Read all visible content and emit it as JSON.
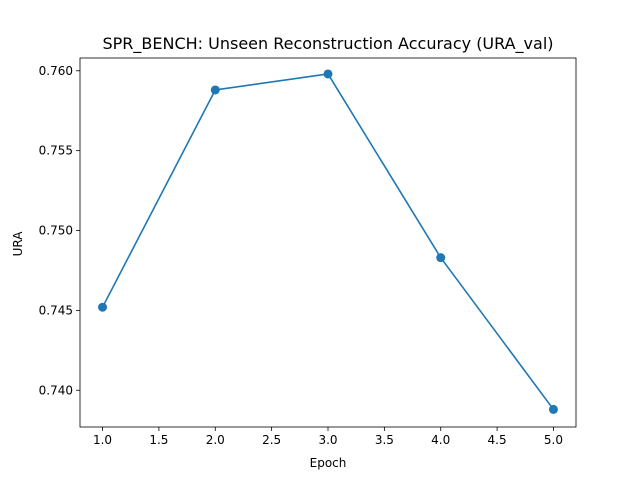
{
  "chart_data": {
    "type": "line",
    "title": "SPR_BENCH: Unseen Reconstruction Accuracy (URA_val)",
    "xlabel": "Epoch",
    "ylabel": "URA",
    "x": [
      1.0,
      2.0,
      3.0,
      4.0,
      5.0
    ],
    "series": [
      {
        "values": [
          0.7452,
          0.7588,
          0.7598,
          0.7483,
          0.7388
        ],
        "color": "#1f77b4",
        "marker": "circle"
      }
    ],
    "xlim": [
      0.8,
      5.2
    ],
    "ylim": [
      0.7377,
      0.7608
    ],
    "xticks": [
      "1.0",
      "1.5",
      "2.0",
      "2.5",
      "3.0",
      "3.5",
      "4.0",
      "4.5",
      "5.0"
    ],
    "yticks": [
      "0.740",
      "0.745",
      "0.750",
      "0.755",
      "0.760"
    ],
    "grid": false,
    "legend": "none"
  }
}
